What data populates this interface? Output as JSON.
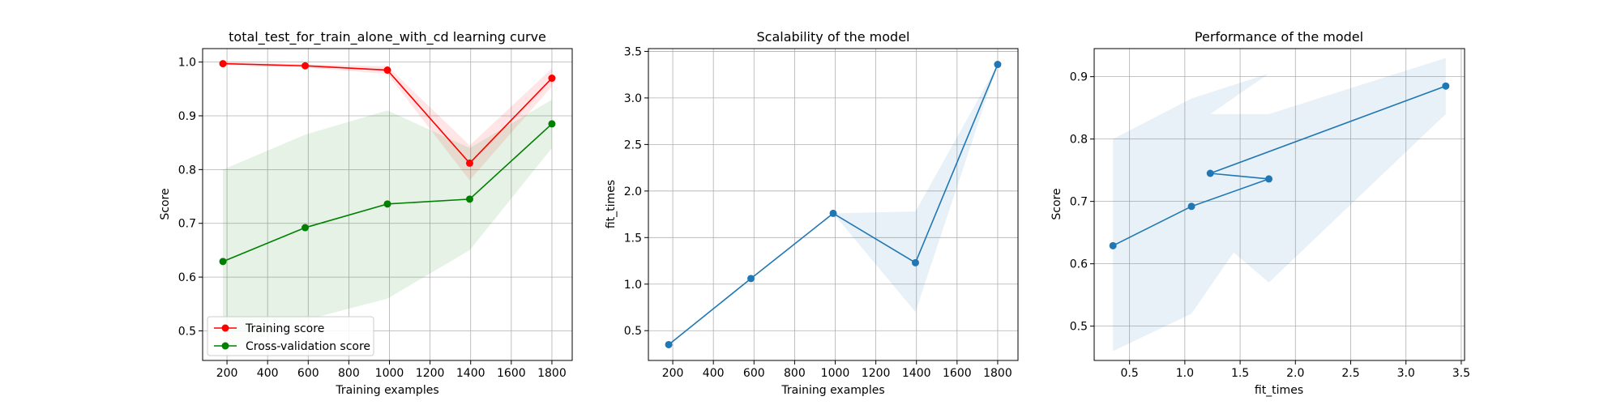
{
  "chart_data": [
    {
      "type": "line",
      "title": "total_test_for_train_alone_with_cd learning curve",
      "xlabel": "Training examples",
      "ylabel": "Score",
      "xlim": [
        80,
        1900
      ],
      "ylim": [
        0.445,
        1.025
      ],
      "xticks": [
        200,
        400,
        600,
        800,
        1000,
        1200,
        1400,
        1600,
        1800
      ],
      "yticks": [
        0.5,
        0.6,
        0.7,
        0.8,
        0.9,
        1.0
      ],
      "grid": true,
      "legend_position": "lower-left",
      "x": [
        180,
        585,
        990,
        1395,
        1800
      ],
      "series": [
        {
          "name": "Training score",
          "color": "#ff0000",
          "values": [
            0.997,
            0.993,
            0.985,
            0.812,
            0.97
          ],
          "band_lower": [
            0.994,
            0.99,
            0.978,
            0.78,
            0.955
          ],
          "band_upper": [
            1.0,
            0.996,
            0.992,
            0.845,
            0.988
          ]
        },
        {
          "name": "Cross-validation score",
          "color": "#008000",
          "values": [
            0.629,
            0.692,
            0.736,
            0.745,
            0.885
          ],
          "band_lower": [
            0.46,
            0.52,
            0.56,
            0.65,
            0.84
          ],
          "band_upper": [
            0.8,
            0.865,
            0.91,
            0.84,
            0.93
          ]
        }
      ]
    },
    {
      "type": "line",
      "title": "Scalability of the model",
      "xlabel": "Training examples",
      "ylabel": "fit_times",
      "xlim": [
        80,
        1900
      ],
      "ylim": [
        0.18,
        3.53
      ],
      "xticks": [
        200,
        400,
        600,
        800,
        1000,
        1200,
        1400,
        1600,
        1800
      ],
      "yticks": [
        0.5,
        1.0,
        1.5,
        2.0,
        2.5,
        3.0,
        3.5
      ],
      "grid": true,
      "x": [
        180,
        585,
        990,
        1395,
        1800
      ],
      "series": [
        {
          "name": "",
          "color": "#1f77b4",
          "values": [
            0.35,
            1.06,
            1.76,
            1.23,
            3.36
          ],
          "band_lower": [
            0.35,
            1.06,
            1.76,
            0.7,
            3.36
          ],
          "band_upper": [
            0.35,
            1.06,
            1.76,
            1.78,
            3.36
          ]
        }
      ]
    },
    {
      "type": "line",
      "title": "Performance of the model",
      "xlabel": "fit_times",
      "ylabel": "Score",
      "xlim": [
        0.18,
        3.53
      ],
      "ylim": [
        0.445,
        0.945
      ],
      "xticks": [
        0.5,
        1.0,
        1.5,
        2.0,
        2.5,
        3.0,
        3.5
      ],
      "yticks": [
        0.5,
        0.6,
        0.7,
        0.8,
        0.9
      ],
      "grid": true,
      "series": [
        {
          "name": "",
          "color": "#1f77b4",
          "x": [
            0.35,
            1.06,
            1.76,
            1.23,
            3.36
          ],
          "values": [
            0.629,
            0.692,
            0.736,
            0.745,
            0.885
          ],
          "band_x": [
            0.35,
            0.35,
            1.06,
            1.76,
            1.23,
            1.76,
            3.36,
            3.36,
            1.76,
            1.23,
            1.76,
            1.06,
            0.35
          ],
          "band_y": [
            0.46,
            0.8,
            0.865,
            0.905,
            0.84,
            0.84,
            0.93,
            0.84,
            0.57,
            0.65,
            0.7,
            0.52,
            0.46
          ]
        }
      ]
    }
  ]
}
